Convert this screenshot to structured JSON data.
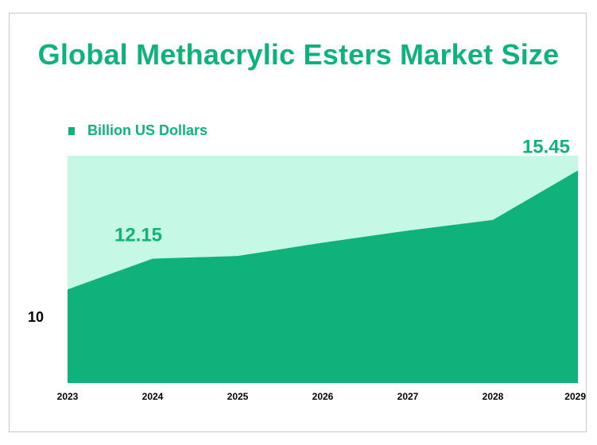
{
  "title": "Global Methacrylic Esters Market Size",
  "colors": {
    "title": "#10b27c",
    "area": "#10b27c",
    "plot_background": "#c6f8e6",
    "axis_text": "#000000",
    "data_label": "#10b27c"
  },
  "chart_data": {
    "type": "area",
    "categories": [
      "2023",
      "2024",
      "2025",
      "2026",
      "2027",
      "2028",
      "2029"
    ],
    "series": [
      {
        "name": "Billion US Dollars",
        "values": [
          11.0,
          12.15,
          12.25,
          12.75,
          13.2,
          13.6,
          15.45
        ]
      }
    ],
    "data_labels": [
      {
        "index": 1,
        "text": "12.15"
      },
      {
        "index": 6,
        "text": "15.45"
      }
    ],
    "ytick_labels": [
      {
        "value": 10,
        "text": "10"
      }
    ],
    "ylim": [
      7.5,
      16
    ],
    "legend_position": "top-left",
    "grid": false
  }
}
